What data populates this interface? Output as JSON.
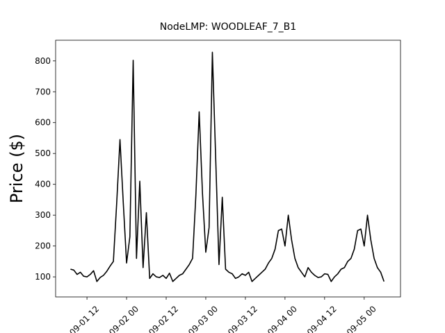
{
  "chart_data": {
    "type": "line",
    "title": "NodeLMP: WOODLEAF_7_B1",
    "y_label": "Price ($)",
    "x": [
      "09-01 07",
      "09-01 08",
      "09-01 09",
      "09-01 10",
      "09-01 11",
      "09-01 12",
      "09-01 13",
      "09-01 14",
      "09-01 15",
      "09-01 16",
      "09-01 17",
      "09-01 18",
      "09-01 19",
      "09-01 20",
      "09-01 21",
      "09-01 22",
      "09-01 23",
      "09-02 00",
      "09-02 01",
      "09-02 02",
      "09-02 03",
      "09-02 04",
      "09-02 05",
      "09-02 06",
      "09-02 07",
      "09-02 08",
      "09-02 09",
      "09-02 10",
      "09-02 11",
      "09-02 12",
      "09-02 13",
      "09-02 14",
      "09-02 15",
      "09-02 16",
      "09-02 17",
      "09-02 18",
      "09-02 19",
      "09-02 20",
      "09-02 21",
      "09-02 22",
      "09-02 23",
      "09-03 00",
      "09-03 01",
      "09-03 02",
      "09-03 03",
      "09-03 04",
      "09-03 05",
      "09-03 06",
      "09-03 07",
      "09-03 08",
      "09-03 09",
      "09-03 10",
      "09-03 11",
      "09-03 12",
      "09-03 13",
      "09-03 14",
      "09-03 15",
      "09-03 16",
      "09-03 17",
      "09-03 18",
      "09-03 19",
      "09-03 20",
      "09-03 21",
      "09-03 22",
      "09-03 23",
      "09-04 00",
      "09-04 01",
      "09-04 02",
      "09-04 03",
      "09-04 04",
      "09-04 05",
      "09-04 06",
      "09-04 07",
      "09-04 08",
      "09-04 09",
      "09-04 10",
      "09-04 11",
      "09-04 12",
      "09-04 13",
      "09-04 14",
      "09-04 15",
      "09-04 16",
      "09-04 17",
      "09-04 18",
      "09-04 19",
      "09-04 20",
      "09-04 21",
      "09-04 22",
      "09-04 23",
      "09-05 00",
      "09-05 01",
      "09-05 02",
      "09-05 03",
      "09-05 04",
      "09-05 05",
      "09-05 06"
    ],
    "series": [
      {
        "color": "#000000",
        "values": [
          125,
          122,
          108,
          115,
          102,
          100,
          108,
          120,
          85,
          98,
          105,
          118,
          135,
          150,
          338,
          545,
          340,
          145,
          230,
          802,
          160,
          410,
          130,
          308,
          95,
          110,
          100,
          98,
          105,
          95,
          112,
          85,
          95,
          105,
          110,
          125,
          140,
          160,
          365,
          635,
          370,
          180,
          260,
          828,
          485,
          140,
          358,
          125,
          115,
          110,
          95,
          100,
          110,
          105,
          115,
          85,
          95,
          105,
          115,
          125,
          145,
          160,
          190,
          250,
          255,
          200,
          300,
          220,
          160,
          130,
          115,
          100,
          130,
          115,
          105,
          98,
          100,
          110,
          108,
          85,
          100,
          110,
          125,
          130,
          150,
          160,
          190,
          250,
          255,
          200,
          300,
          220,
          160,
          130,
          115,
          85
        ]
      }
    ],
    "xlim": [
      "09-01 02:30",
      "09-05 11:00"
    ],
    "xticks": [
      "09-01 12",
      "09-02 00",
      "09-02 12",
      "09-03 00",
      "09-03 12",
      "09-04 00",
      "09-04 12",
      "09-05 00"
    ],
    "ylim": [
      35,
      867
    ],
    "yticks": [
      100,
      200,
      300,
      400,
      500,
      600,
      700,
      800
    ],
    "grid": false
  }
}
